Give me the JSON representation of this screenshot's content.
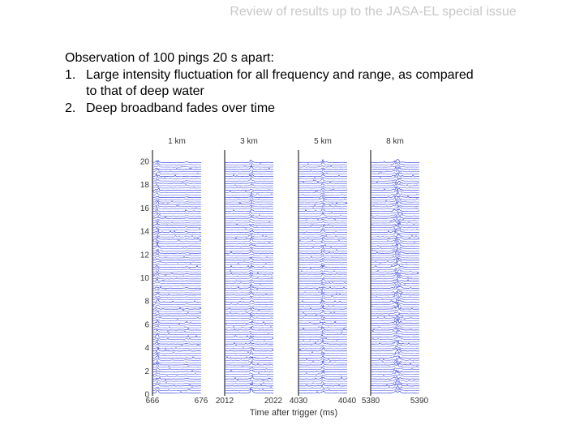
{
  "header": {
    "title": "Review of results up to the JASA-EL special issue"
  },
  "body": {
    "heading": "Observation of 100 pings 20 s apart:",
    "items": [
      {
        "num": "1.",
        "text": "Large intensity fluctuation for all frequency and range, as compared to that of deep water"
      },
      {
        "num": "2.",
        "text": "Deep broadband fades over time"
      }
    ]
  },
  "chart_data": {
    "type": "line",
    "xlabel": "Time after trigger (ms)",
    "ylabel": "",
    "yticks": [
      "0",
      "2",
      "4",
      "6",
      "8",
      "10",
      "12",
      "14",
      "16",
      "18",
      "20"
    ],
    "ylim": [
      0,
      21
    ],
    "n_pings": 100,
    "trace_color": "#2030e0",
    "panels": [
      {
        "title": "1 km",
        "xlim": [
          666,
          676
        ],
        "xticks": [
          "666",
          "676"
        ],
        "arrivals_ms": [
          667,
          673
        ]
      },
      {
        "title": "3 km",
        "xlim": [
          2012,
          2022
        ],
        "xticks": [
          "2012",
          "2022"
        ],
        "arrivals_ms": [
          2017.5
        ]
      },
      {
        "title": "5 km",
        "xlim": [
          4030,
          4040
        ],
        "xticks": [
          "4030",
          "4040"
        ],
        "arrivals_ms": [
          4035
        ]
      },
      {
        "title": "8 km",
        "xlim": [
          5380,
          5390
        ],
        "xticks": [
          "5380",
          "5390"
        ],
        "arrivals_ms": [
          5385.5
        ]
      }
    ]
  }
}
